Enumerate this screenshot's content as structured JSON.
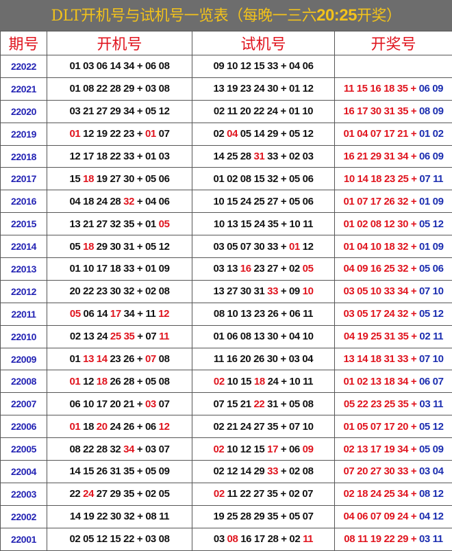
{
  "title": {
    "prefix": "DLT开机号与试机号一览表（每晚一三六",
    "time": "20:25",
    "suffix": "开奖）"
  },
  "headers": [
    "期号",
    "开机号",
    "试机号",
    "开奖号"
  ],
  "separator": "+",
  "colors": {
    "title_bg": "#6d6d6d",
    "title_text": "#f2c21b",
    "header": "#e0141e",
    "issue": "#2323b4",
    "highlight": "#e0141e",
    "prize_back": "#1d2fb0"
  },
  "rows": [
    {
      "issue": "22022",
      "open": {
        "front": [
          "01",
          "03",
          "06",
          "14",
          "34"
        ],
        "back": [
          "06",
          "08"
        ],
        "hot": []
      },
      "test": {
        "front": [
          "09",
          "10",
          "12",
          "15",
          "33"
        ],
        "back": [
          "04",
          "06"
        ],
        "hot": []
      },
      "prize": null
    },
    {
      "issue": "22021",
      "open": {
        "front": [
          "01",
          "08",
          "22",
          "28",
          "29"
        ],
        "back": [
          "03",
          "08"
        ],
        "hot": []
      },
      "test": {
        "front": [
          "13",
          "19",
          "23",
          "24",
          "30"
        ],
        "back": [
          "01",
          "12"
        ],
        "hot": []
      },
      "prize": {
        "front": [
          "11",
          "15",
          "16",
          "18",
          "35"
        ],
        "back": [
          "06",
          "09"
        ]
      }
    },
    {
      "issue": "22020",
      "open": {
        "front": [
          "03",
          "21",
          "27",
          "29",
          "34"
        ],
        "back": [
          "05",
          "12"
        ],
        "hot": []
      },
      "test": {
        "front": [
          "02",
          "11",
          "20",
          "22",
          "24"
        ],
        "back": [
          "01",
          "10"
        ],
        "hot": []
      },
      "prize": {
        "front": [
          "16",
          "17",
          "30",
          "31",
          "35"
        ],
        "back": [
          "08",
          "09"
        ]
      }
    },
    {
      "issue": "22019",
      "open": {
        "front": [
          "01",
          "12",
          "19",
          "22",
          "23"
        ],
        "back": [
          "01",
          "07"
        ],
        "hot": [
          0,
          5
        ]
      },
      "test": {
        "front": [
          "02",
          "04",
          "05",
          "14",
          "29"
        ],
        "back": [
          "05",
          "12"
        ],
        "hot": [
          1
        ]
      },
      "prize": {
        "front": [
          "01",
          "04",
          "07",
          "17",
          "21"
        ],
        "back": [
          "01",
          "02"
        ]
      }
    },
    {
      "issue": "22018",
      "open": {
        "front": [
          "12",
          "17",
          "18",
          "22",
          "33"
        ],
        "back": [
          "01",
          "03"
        ],
        "hot": []
      },
      "test": {
        "front": [
          "14",
          "25",
          "28",
          "31",
          "33"
        ],
        "back": [
          "02",
          "03"
        ],
        "hot": [
          3
        ]
      },
      "prize": {
        "front": [
          "16",
          "21",
          "29",
          "31",
          "34"
        ],
        "back": [
          "06",
          "09"
        ]
      }
    },
    {
      "issue": "22017",
      "open": {
        "front": [
          "15",
          "18",
          "19",
          "27",
          "30"
        ],
        "back": [
          "05",
          "06"
        ],
        "hot": [
          1
        ]
      },
      "test": {
        "front": [
          "01",
          "02",
          "08",
          "15",
          "32"
        ],
        "back": [
          "05",
          "06"
        ],
        "hot": []
      },
      "prize": {
        "front": [
          "10",
          "14",
          "18",
          "23",
          "25"
        ],
        "back": [
          "07",
          "11"
        ]
      }
    },
    {
      "issue": "22016",
      "open": {
        "front": [
          "04",
          "18",
          "24",
          "28",
          "32"
        ],
        "back": [
          "04",
          "06"
        ],
        "hot": [
          4
        ]
      },
      "test": {
        "front": [
          "10",
          "15",
          "24",
          "25",
          "27"
        ],
        "back": [
          "05",
          "06"
        ],
        "hot": []
      },
      "prize": {
        "front": [
          "01",
          "07",
          "17",
          "26",
          "32"
        ],
        "back": [
          "01",
          "09"
        ]
      }
    },
    {
      "issue": "22015",
      "open": {
        "front": [
          "13",
          "21",
          "27",
          "32",
          "35"
        ],
        "back": [
          "01",
          "05"
        ],
        "hot": [
          6
        ]
      },
      "test": {
        "front": [
          "10",
          "13",
          "15",
          "24",
          "35"
        ],
        "back": [
          "10",
          "11"
        ],
        "hot": []
      },
      "prize": {
        "front": [
          "01",
          "02",
          "08",
          "12",
          "30"
        ],
        "back": [
          "05",
          "12"
        ]
      }
    },
    {
      "issue": "22014",
      "open": {
        "front": [
          "05",
          "18",
          "29",
          "30",
          "31"
        ],
        "back": [
          "05",
          "12"
        ],
        "hot": [
          1
        ]
      },
      "test": {
        "front": [
          "03",
          "05",
          "07",
          "30",
          "33"
        ],
        "back": [
          "01",
          "12"
        ],
        "hot": [
          5
        ]
      },
      "prize": {
        "front": [
          "01",
          "04",
          "10",
          "18",
          "32"
        ],
        "back": [
          "01",
          "09"
        ]
      }
    },
    {
      "issue": "22013",
      "open": {
        "front": [
          "01",
          "10",
          "17",
          "18",
          "33"
        ],
        "back": [
          "01",
          "09"
        ],
        "hot": []
      },
      "test": {
        "front": [
          "03",
          "13",
          "16",
          "23",
          "27"
        ],
        "back": [
          "02",
          "05"
        ],
        "hot": [
          2,
          6
        ]
      },
      "prize": {
        "front": [
          "04",
          "09",
          "16",
          "25",
          "32"
        ],
        "back": [
          "05",
          "06"
        ]
      }
    },
    {
      "issue": "22012",
      "open": {
        "front": [
          "20",
          "22",
          "23",
          "30",
          "32"
        ],
        "back": [
          "02",
          "08"
        ],
        "hot": []
      },
      "test": {
        "front": [
          "13",
          "27",
          "30",
          "31",
          "33"
        ],
        "back": [
          "09",
          "10"
        ],
        "hot": [
          4,
          6
        ]
      },
      "prize": {
        "front": [
          "03",
          "05",
          "10",
          "33",
          "34"
        ],
        "back": [
          "07",
          "10"
        ]
      }
    },
    {
      "issue": "22011",
      "open": {
        "front": [
          "05",
          "06",
          "14",
          "17",
          "34"
        ],
        "back": [
          "11",
          "12"
        ],
        "hot": [
          0,
          3,
          6
        ]
      },
      "test": {
        "front": [
          "08",
          "10",
          "13",
          "23",
          "26"
        ],
        "back": [
          "06",
          "11"
        ],
        "hot": []
      },
      "prize": {
        "front": [
          "03",
          "05",
          "17",
          "24",
          "32"
        ],
        "back": [
          "05",
          "12"
        ]
      }
    },
    {
      "issue": "22010",
      "open": {
        "front": [
          "02",
          "13",
          "24",
          "25",
          "35"
        ],
        "back": [
          "07",
          "11"
        ],
        "hot": [
          3,
          4,
          6
        ]
      },
      "test": {
        "front": [
          "01",
          "06",
          "08",
          "13",
          "30"
        ],
        "back": [
          "04",
          "10"
        ],
        "hot": []
      },
      "prize": {
        "front": [
          "04",
          "19",
          "25",
          "31",
          "35"
        ],
        "back": [
          "02",
          "11"
        ]
      }
    },
    {
      "issue": "22009",
      "open": {
        "front": [
          "01",
          "13",
          "14",
          "23",
          "26"
        ],
        "back": [
          "07",
          "08"
        ],
        "hot": [
          1,
          2,
          5
        ]
      },
      "test": {
        "front": [
          "11",
          "16",
          "20",
          "26",
          "30"
        ],
        "back": [
          "03",
          "04"
        ],
        "hot": []
      },
      "prize": {
        "front": [
          "13",
          "14",
          "18",
          "31",
          "33"
        ],
        "back": [
          "07",
          "10"
        ]
      }
    },
    {
      "issue": "22008",
      "open": {
        "front": [
          "01",
          "12",
          "18",
          "26",
          "28"
        ],
        "back": [
          "05",
          "08"
        ],
        "hot": [
          0,
          2
        ]
      },
      "test": {
        "front": [
          "02",
          "10",
          "15",
          "18",
          "24"
        ],
        "back": [
          "10",
          "11"
        ],
        "hot": [
          0,
          3
        ]
      },
      "prize": {
        "front": [
          "01",
          "02",
          "13",
          "18",
          "34"
        ],
        "back": [
          "06",
          "07"
        ]
      }
    },
    {
      "issue": "22007",
      "open": {
        "front": [
          "06",
          "10",
          "17",
          "20",
          "21"
        ],
        "back": [
          "03",
          "07"
        ],
        "hot": [
          5
        ]
      },
      "test": {
        "front": [
          "07",
          "15",
          "21",
          "22",
          "31"
        ],
        "back": [
          "05",
          "08"
        ],
        "hot": [
          3
        ]
      },
      "prize": {
        "front": [
          "05",
          "22",
          "23",
          "25",
          "35"
        ],
        "back": [
          "03",
          "11"
        ]
      }
    },
    {
      "issue": "22006",
      "open": {
        "front": [
          "01",
          "18",
          "20",
          "24",
          "26"
        ],
        "back": [
          "06",
          "12"
        ],
        "hot": [
          0,
          2,
          6
        ]
      },
      "test": {
        "front": [
          "02",
          "21",
          "24",
          "27",
          "35"
        ],
        "back": [
          "07",
          "10"
        ],
        "hot": []
      },
      "prize": {
        "front": [
          "01",
          "05",
          "07",
          "17",
          "20"
        ],
        "back": [
          "05",
          "12"
        ]
      }
    },
    {
      "issue": "22005",
      "open": {
        "front": [
          "08",
          "22",
          "28",
          "32",
          "34"
        ],
        "back": [
          "03",
          "07"
        ],
        "hot": [
          4
        ]
      },
      "test": {
        "front": [
          "02",
          "10",
          "12",
          "15",
          "17"
        ],
        "back": [
          "06",
          "09"
        ],
        "hot": [
          0,
          4,
          6
        ]
      },
      "prize": {
        "front": [
          "02",
          "13",
          "17",
          "19",
          "34"
        ],
        "back": [
          "05",
          "09"
        ]
      }
    },
    {
      "issue": "22004",
      "open": {
        "front": [
          "14",
          "15",
          "26",
          "31",
          "35"
        ],
        "back": [
          "05",
          "09"
        ],
        "hot": []
      },
      "test": {
        "front": [
          "02",
          "12",
          "14",
          "29",
          "33"
        ],
        "back": [
          "02",
          "08"
        ],
        "hot": [
          4
        ]
      },
      "prize": {
        "front": [
          "07",
          "20",
          "27",
          "30",
          "33"
        ],
        "back": [
          "03",
          "04"
        ]
      }
    },
    {
      "issue": "22003",
      "open": {
        "front": [
          "22",
          "24",
          "27",
          "29",
          "35"
        ],
        "back": [
          "02",
          "05"
        ],
        "hot": [
          1
        ]
      },
      "test": {
        "front": [
          "02",
          "11",
          "22",
          "27",
          "35"
        ],
        "back": [
          "02",
          "07"
        ],
        "hot": [
          0
        ]
      },
      "prize": {
        "front": [
          "02",
          "18",
          "24",
          "25",
          "34"
        ],
        "back": [
          "08",
          "12"
        ]
      }
    },
    {
      "issue": "22002",
      "open": {
        "front": [
          "14",
          "19",
          "22",
          "30",
          "32"
        ],
        "back": [
          "08",
          "11"
        ],
        "hot": []
      },
      "test": {
        "front": [
          "19",
          "25",
          "28",
          "29",
          "35"
        ],
        "back": [
          "05",
          "07"
        ],
        "hot": []
      },
      "prize": {
        "front": [
          "04",
          "06",
          "07",
          "09",
          "24"
        ],
        "back": [
          "04",
          "12"
        ]
      }
    },
    {
      "issue": "22001",
      "open": {
        "front": [
          "02",
          "05",
          "12",
          "15",
          "22"
        ],
        "back": [
          "03",
          "08"
        ],
        "hot": []
      },
      "test": {
        "front": [
          "03",
          "08",
          "16",
          "17",
          "28"
        ],
        "back": [
          "02",
          "11"
        ],
        "hot": [
          1,
          6
        ]
      },
      "prize": {
        "front": [
          "08",
          "11",
          "19",
          "22",
          "29"
        ],
        "back": [
          "03",
          "11"
        ]
      }
    }
  ]
}
